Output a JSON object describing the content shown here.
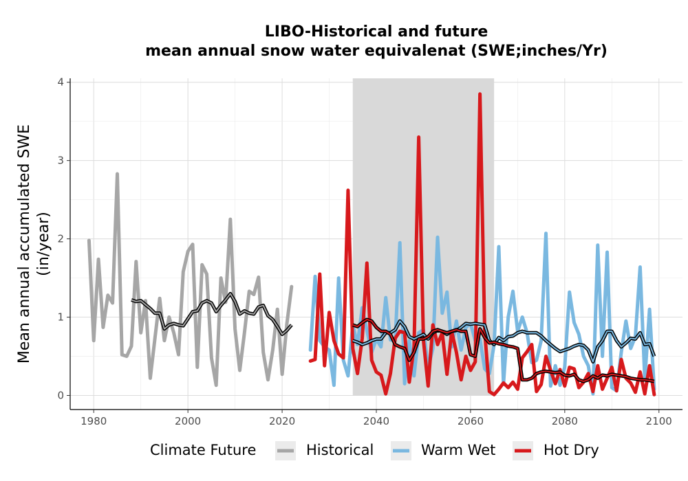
{
  "chart_data": {
    "type": "line",
    "title": "LIBO-Historical and future",
    "subtitle": "mean annual snow water equivalenat (SWE;inches/Yr)",
    "xlabel": "",
    "ylabel": "Mean annual accumulated SWE",
    "ylabel2": "(in/year)",
    "xlim": [
      1975,
      2105
    ],
    "ylim": [
      -0.18,
      4.05
    ],
    "xticks": [
      1980,
      2000,
      2020,
      2040,
      2060,
      2080,
      2100
    ],
    "yticks": [
      0,
      1,
      2,
      3,
      4
    ],
    "grid": true,
    "shaded_period": [
      2035,
      2065
    ],
    "legend": {
      "title": "Climate Future",
      "position": "bottom",
      "entries": [
        {
          "name": "Historical",
          "color": "#a6a6a6"
        },
        {
          "name": "Warm Wet",
          "color": "#7ab8e0"
        },
        {
          "name": "Hot Dry",
          "color": "#d7191c"
        }
      ]
    },
    "series": [
      {
        "name": "Historical",
        "color": "#a6a6a6",
        "x": [
          1979,
          1980,
          1981,
          1982,
          1983,
          1984,
          1985,
          1986,
          1987,
          1988,
          1989,
          1990,
          1991,
          1992,
          1993,
          1994,
          1995,
          1996,
          1997,
          1998,
          1999,
          2000,
          2001,
          2002,
          2003,
          2004,
          2005,
          2006,
          2007,
          2008,
          2009,
          2010,
          2011,
          2012,
          2013,
          2014,
          2015,
          2016,
          2017,
          2018,
          2019,
          2020,
          2021,
          2022
        ],
        "values": [
          1.98,
          0.7,
          1.74,
          0.87,
          1.28,
          1.18,
          2.83,
          0.52,
          0.5,
          0.63,
          1.71,
          0.8,
          1.21,
          0.22,
          0.73,
          1.24,
          0.7,
          1.0,
          0.8,
          0.52,
          1.58,
          1.84,
          1.93,
          0.36,
          1.67,
          1.55,
          0.48,
          0.13,
          1.5,
          1.19,
          2.25,
          0.85,
          0.32,
          0.8,
          1.33,
          1.29,
          1.51,
          0.55,
          0.2,
          0.58,
          1.1,
          0.27,
          0.91,
          1.39
        ]
      },
      {
        "name": "Historical running mean",
        "color": "#000000",
        "x": [
          1988,
          1989,
          1990,
          1991,
          1992,
          1993,
          1994,
          1995,
          1996,
          1997,
          1998,
          1999,
          2000,
          2001,
          2002,
          2003,
          2004,
          2005,
          2006,
          2007,
          2008,
          2009,
          2010,
          2011,
          2012,
          2013,
          2014,
          2015,
          2016,
          2017,
          2018,
          2019,
          2020,
          2021,
          2022
        ],
        "values": [
          1.22,
          1.2,
          1.21,
          1.16,
          1.11,
          1.05,
          1.05,
          0.85,
          0.9,
          0.92,
          0.9,
          0.89,
          0.98,
          1.07,
          1.08,
          1.18,
          1.21,
          1.18,
          1.07,
          1.15,
          1.22,
          1.3,
          1.2,
          1.04,
          1.08,
          1.05,
          1.04,
          1.13,
          1.15,
          1.02,
          0.97,
          0.88,
          0.78,
          0.83,
          0.9
        ]
      },
      {
        "name": "Warm Wet",
        "color": "#7ab8e0",
        "x": [
          2026,
          2027,
          2028,
          2029,
          2030,
          2031,
          2032,
          2033,
          2034,
          2035,
          2036,
          2037,
          2038,
          2039,
          2040,
          2041,
          2042,
          2043,
          2044,
          2045,
          2046,
          2047,
          2048,
          2049,
          2050,
          2051,
          2052,
          2053,
          2054,
          2055,
          2056,
          2057,
          2058,
          2059,
          2060,
          2061,
          2062,
          2063,
          2064,
          2065,
          2066,
          2067,
          2068,
          2069,
          2070,
          2071,
          2072,
          2073,
          2074,
          2075,
          2076,
          2077,
          2078,
          2079,
          2080,
          2081,
          2082,
          2083,
          2084,
          2085,
          2086,
          2087,
          2088,
          2089,
          2090,
          2091,
          2092,
          2093,
          2094,
          2095,
          2096,
          2097,
          2098,
          2099
        ],
        "values": [
          0.58,
          1.52,
          0.7,
          0.62,
          0.58,
          0.13,
          1.5,
          0.45,
          0.25,
          0.9,
          0.65,
          1.12,
          0.83,
          0.55,
          0.72,
          0.62,
          1.25,
          0.71,
          0.7,
          1.95,
          0.15,
          0.7,
          0.25,
          0.8,
          0.84,
          0.35,
          0.6,
          2.02,
          1.05,
          1.32,
          0.62,
          0.95,
          0.58,
          0.87,
          0.92,
          0.7,
          0.72,
          0.34,
          0.28,
          0.65,
          1.9,
          0.15,
          1.0,
          1.33,
          0.82,
          1.0,
          0.8,
          0.42,
          0.45,
          0.7,
          2.07,
          0.12,
          0.38,
          0.13,
          0.36,
          1.32,
          0.93,
          0.78,
          0.5,
          0.38,
          0.02,
          1.92,
          0.5,
          1.83,
          0.1,
          0.06,
          0.55,
          0.95,
          0.6,
          0.75,
          1.64,
          0.2,
          1.1,
          0.08
        ]
      },
      {
        "name": "Warm Wet running mean",
        "color": "#000000",
        "x": [
          2035,
          2036,
          2037,
          2038,
          2039,
          2040,
          2041,
          2042,
          2043,
          2044,
          2045,
          2046,
          2047,
          2048,
          2049,
          2050,
          2051,
          2052,
          2053,
          2054,
          2055,
          2056,
          2057,
          2058,
          2059,
          2060,
          2061,
          2062,
          2063,
          2064,
          2065,
          2066,
          2067,
          2068,
          2069,
          2070,
          2071,
          2072,
          2073,
          2074,
          2075,
          2076,
          2077,
          2078,
          2079,
          2080,
          2081,
          2082,
          2083,
          2084,
          2085,
          2086,
          2087,
          2088,
          2089,
          2090,
          2091,
          2092,
          2093,
          2094,
          2095,
          2096,
          2097,
          2098,
          2099
        ],
        "values": [
          0.7,
          0.68,
          0.65,
          0.67,
          0.7,
          0.72,
          0.72,
          0.8,
          0.8,
          0.84,
          0.95,
          0.88,
          0.75,
          0.72,
          0.75,
          0.78,
          0.72,
          0.8,
          0.83,
          0.82,
          0.78,
          0.82,
          0.83,
          0.87,
          0.92,
          0.91,
          0.92,
          0.91,
          0.9,
          0.7,
          0.65,
          0.74,
          0.7,
          0.75,
          0.76,
          0.8,
          0.82,
          0.8,
          0.8,
          0.8,
          0.76,
          0.7,
          0.65,
          0.6,
          0.56,
          0.58,
          0.6,
          0.63,
          0.65,
          0.64,
          0.58,
          0.43,
          0.62,
          0.7,
          0.82,
          0.82,
          0.7,
          0.62,
          0.67,
          0.73,
          0.72,
          0.8,
          0.65,
          0.66,
          0.5
        ]
      },
      {
        "name": "Hot Dry",
        "color": "#d7191c",
        "x": [
          2026,
          2027,
          2028,
          2029,
          2030,
          2031,
          2032,
          2033,
          2034,
          2035,
          2036,
          2037,
          2038,
          2039,
          2040,
          2041,
          2042,
          2043,
          2044,
          2045,
          2046,
          2047,
          2048,
          2049,
          2050,
          2051,
          2052,
          2053,
          2054,
          2055,
          2056,
          2057,
          2058,
          2059,
          2060,
          2061,
          2062,
          2063,
          2064,
          2065,
          2066,
          2067,
          2068,
          2069,
          2070,
          2071,
          2072,
          2073,
          2074,
          2075,
          2076,
          2077,
          2078,
          2079,
          2080,
          2081,
          2082,
          2083,
          2084,
          2085,
          2086,
          2087,
          2088,
          2089,
          2090,
          2091,
          2092,
          2093,
          2094,
          2095,
          2096,
          2097,
          2098,
          2099
        ],
        "values": [
          0.44,
          0.46,
          1.55,
          0.38,
          1.06,
          0.7,
          0.53,
          0.48,
          2.62,
          0.6,
          0.28,
          0.73,
          1.69,
          0.45,
          0.3,
          0.26,
          0.02,
          0.28,
          0.73,
          0.82,
          0.8,
          0.17,
          0.62,
          3.3,
          0.7,
          0.12,
          0.9,
          0.65,
          0.8,
          0.27,
          0.82,
          0.55,
          0.2,
          0.5,
          0.32,
          0.43,
          3.85,
          0.82,
          0.05,
          0.01,
          0.08,
          0.16,
          0.1,
          0.17,
          0.08,
          0.48,
          0.56,
          0.65,
          0.05,
          0.14,
          0.5,
          0.32,
          0.15,
          0.33,
          0.12,
          0.36,
          0.34,
          0.1,
          0.17,
          0.28,
          0.05,
          0.38,
          0.08,
          0.22,
          0.36,
          0.06,
          0.46,
          0.22,
          0.16,
          0.04,
          0.3,
          0.02,
          0.38,
          0.01
        ]
      },
      {
        "name": "Hot Dry running mean",
        "color": "#000000",
        "x": [
          2035,
          2036,
          2037,
          2038,
          2039,
          2040,
          2041,
          2042,
          2043,
          2044,
          2045,
          2046,
          2047,
          2048,
          2049,
          2050,
          2051,
          2052,
          2053,
          2054,
          2055,
          2056,
          2057,
          2058,
          2059,
          2060,
          2061,
          2062,
          2063,
          2064,
          2065,
          2066,
          2067,
          2068,
          2069,
          2070,
          2071,
          2072,
          2073,
          2074,
          2075,
          2076,
          2077,
          2078,
          2079,
          2080,
          2081,
          2082,
          2083,
          2084,
          2085,
          2086,
          2087,
          2088,
          2089,
          2090,
          2091,
          2092,
          2093,
          2094,
          2095,
          2096,
          2097,
          2098,
          2099
        ],
        "values": [
          0.9,
          0.88,
          0.93,
          0.97,
          0.95,
          0.87,
          0.82,
          0.82,
          0.78,
          0.65,
          0.62,
          0.6,
          0.45,
          0.55,
          0.72,
          0.72,
          0.75,
          0.82,
          0.84,
          0.82,
          0.8,
          0.82,
          0.84,
          0.82,
          0.82,
          0.52,
          0.5,
          0.85,
          0.74,
          0.67,
          0.68,
          0.66,
          0.65,
          0.63,
          0.62,
          0.6,
          0.2,
          0.2,
          0.22,
          0.28,
          0.3,
          0.31,
          0.3,
          0.29,
          0.3,
          0.26,
          0.25,
          0.27,
          0.2,
          0.18,
          0.2,
          0.25,
          0.22,
          0.26,
          0.25,
          0.27,
          0.26,
          0.25,
          0.24,
          0.22,
          0.21,
          0.2,
          0.2,
          0.19,
          0.18
        ]
      }
    ]
  }
}
